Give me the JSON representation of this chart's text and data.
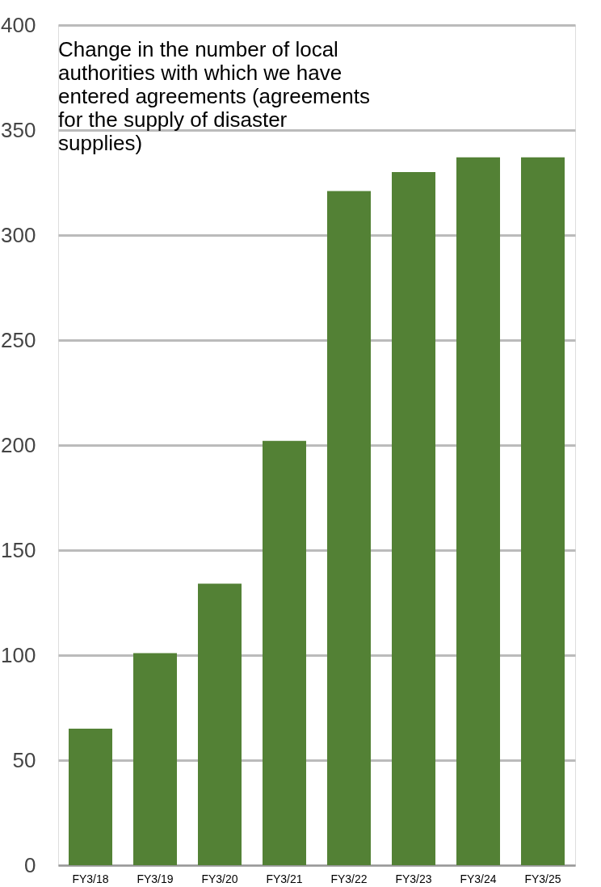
{
  "chart_data": {
    "type": "bar",
    "title": "Change in the number of local authorities with which we have entered agreements (agreements for the supply of disaster supplies)",
    "categories": [
      "FY3/18",
      "FY3/19",
      "FY3/20",
      "FY3/21",
      "FY3/22",
      "FY3/23",
      "FY3/24",
      "FY3/25"
    ],
    "values": [
      65,
      101,
      134,
      202,
      321,
      330,
      337,
      337
    ],
    "color": "#538135",
    "ylim": [
      0,
      400
    ],
    "yticks": [
      0,
      50,
      100,
      150,
      200,
      250,
      300,
      350,
      400
    ],
    "grid": "y"
  }
}
